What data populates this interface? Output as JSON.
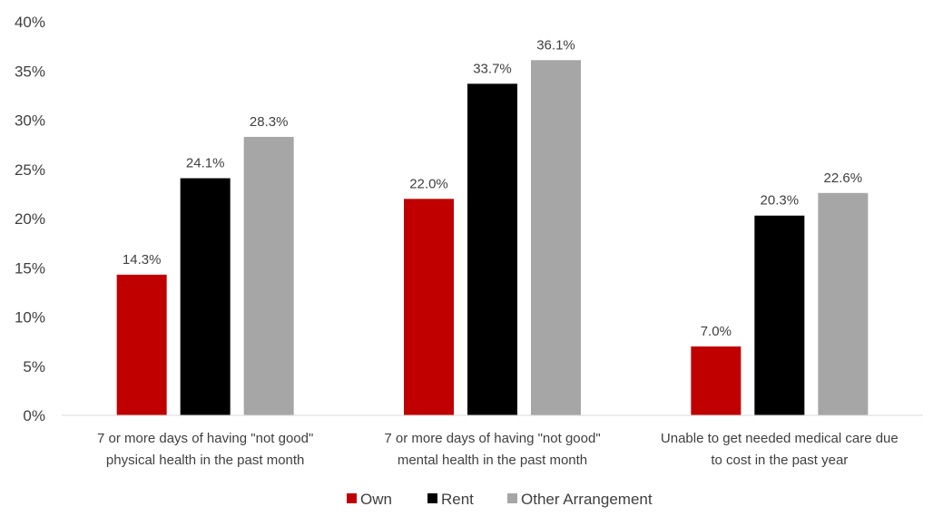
{
  "chart_data": {
    "type": "bar",
    "categories": [
      [
        "7 or more days of having \"not good\"",
        "physical health in the past month"
      ],
      [
        "7 or more days of having \"not good\"",
        "mental health in the past month"
      ],
      [
        "Unable to get needed medical care due",
        "to cost in the past year"
      ]
    ],
    "series": [
      {
        "name": "Own",
        "color": "#c00000",
        "values": [
          14.3,
          22.0,
          7.0
        ],
        "labels": [
          "14.3%",
          "22.0%",
          "7.0%"
        ]
      },
      {
        "name": "Rent",
        "color": "#000000",
        "values": [
          24.1,
          33.7,
          20.3
        ],
        "labels": [
          "24.1%",
          "33.7%",
          "20.3%"
        ]
      },
      {
        "name": "Other Arrangement",
        "color": "#a6a6a6",
        "values": [
          28.3,
          36.1,
          22.6
        ],
        "labels": [
          "28.3%",
          "36.1%",
          "22.6%"
        ]
      }
    ],
    "yticks": [
      "0%",
      "5%",
      "10%",
      "15%",
      "20%",
      "25%",
      "30%",
      "35%",
      "40%"
    ],
    "ylim": [
      0,
      40
    ],
    "grid": false,
    "legend_position": "bottom"
  }
}
